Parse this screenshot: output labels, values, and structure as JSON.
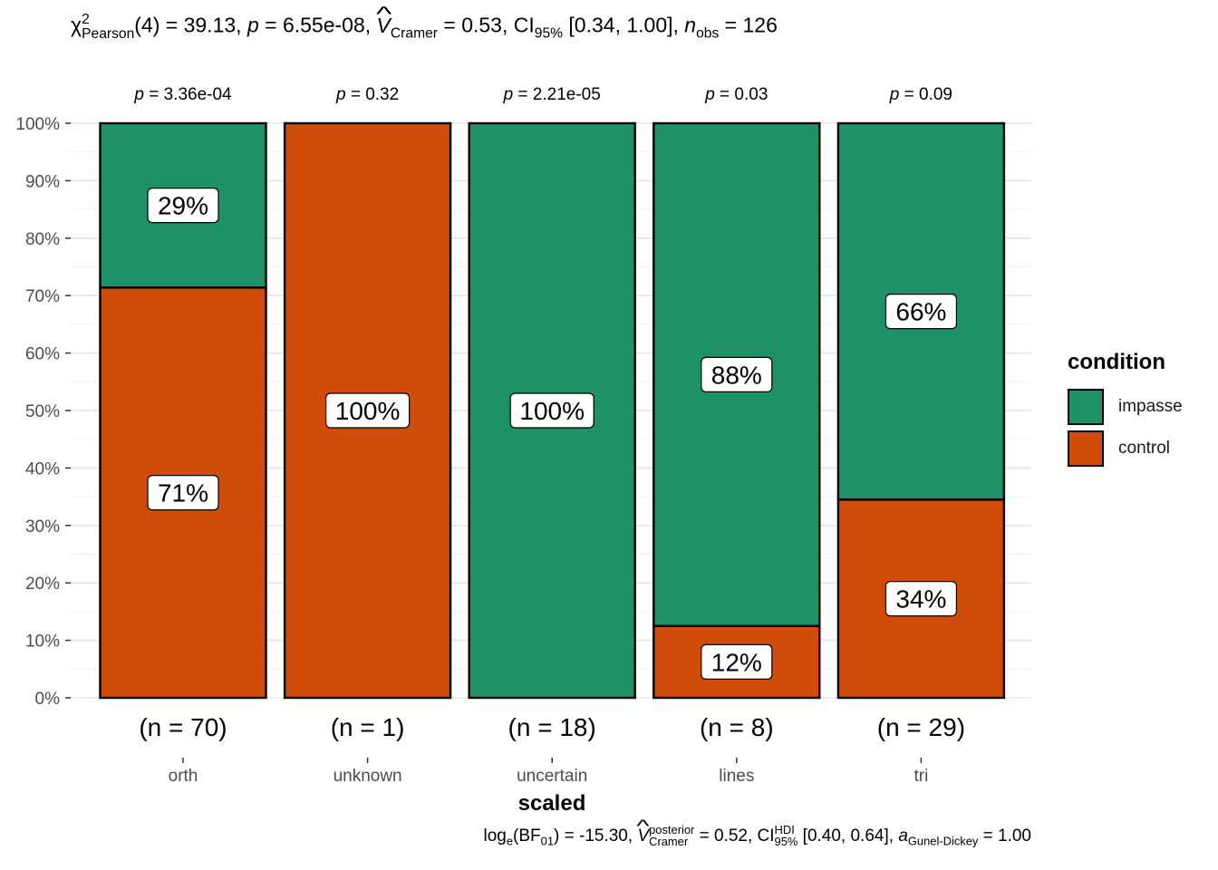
{
  "title": {
    "chi": "χ",
    "chi_sup": "2",
    "chi_sub": "Pearson",
    "stat_text": "(4) = 39.13, ",
    "p_label": "p",
    "p_text": " = 6.55e-08, ",
    "v_label": "V",
    "v_sub": "Cramer",
    "v_text": " = 0.53, CI",
    "ci_sub": "95%",
    "ci_text": " [0.34, 1.00], ",
    "n_label": "n",
    "n_sub": "obs",
    "n_text": " = 126"
  },
  "caption": {
    "log_text": "log",
    "log_sub": "e",
    "bf_text": "(BF",
    "bf_sub": "01",
    "bf_val": ") = -15.30, ",
    "v_label": "V",
    "v_sup": "posterior",
    "v_sub": "Cramer",
    "v_text": " = 0.52, CI",
    "ci_sup": "HDI",
    "ci_sub": "95%",
    "ci_text": " [0.40, 0.64], ",
    "a_label": "a",
    "a_sub": "Gunel-Dickey",
    "a_text": " = 1.00"
  },
  "legend": {
    "title": "condition",
    "items": [
      {
        "label": "impasse",
        "color": "#1E9166"
      },
      {
        "label": "control",
        "color": "#CF4C0A"
      }
    ]
  },
  "chart_data": {
    "type": "bar",
    "stacked": true,
    "xlabel": "scaled",
    "ylabel": "",
    "ylim": [
      0,
      100
    ],
    "y_ticks": [
      "0%",
      "10%",
      "20%",
      "30%",
      "40%",
      "50%",
      "60%",
      "70%",
      "80%",
      "90%",
      "100%"
    ],
    "categories": [
      "orth",
      "unknown",
      "uncertain",
      "lines",
      "tri"
    ],
    "n_labels": [
      "(n = 70)",
      "(n = 1)",
      "(n = 18)",
      "(n = 8)",
      "(n = 29)"
    ],
    "p_values": [
      "3.36e-04",
      "0.32",
      "2.21e-05",
      "0.03",
      "0.09"
    ],
    "p_prefix": "p",
    "series": [
      {
        "name": "control",
        "color": "#CF4C0A",
        "values": [
          71.4,
          100,
          0,
          12.5,
          34.5
        ],
        "labels": [
          "71%",
          "100%",
          "",
          "12%",
          "34%"
        ]
      },
      {
        "name": "impasse",
        "color": "#1E9166",
        "values": [
          28.6,
          0,
          100,
          87.5,
          65.5
        ],
        "labels": [
          "29%",
          "",
          "100%",
          "88%",
          "66%"
        ]
      }
    ],
    "grid": true,
    "legend_position": "right"
  }
}
